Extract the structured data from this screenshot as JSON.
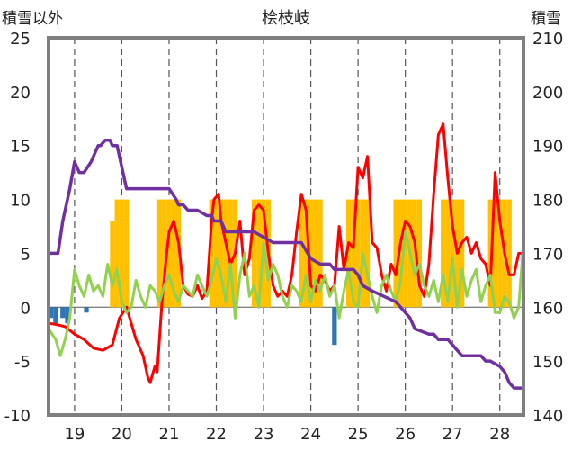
{
  "chart_data": {
    "type": "combo",
    "title": "桧枝岐",
    "left_axis_label": "積雪以外",
    "right_axis_label": "積雪",
    "ylim_left": [
      -10,
      25
    ],
    "ylim_right": [
      140,
      210
    ],
    "left_ticks": [
      25,
      20,
      15,
      10,
      5,
      0,
      -5,
      -10
    ],
    "right_ticks": [
      210,
      200,
      190,
      180,
      170,
      160,
      150,
      140
    ],
    "xlim": [
      18.45,
      28.5
    ],
    "x_ticks": [
      19,
      20,
      21,
      22,
      23,
      24,
      25,
      26,
      27,
      28
    ],
    "grid": "vertical-dashed",
    "colors": {
      "temperature": "#ff0000",
      "green_series": "#92d050",
      "snow_depth": "#7030a0",
      "precip_bars": "#ffc000",
      "neg_bars": "#2e75b6"
    },
    "series": [
      {
        "type": "line",
        "axis": "left",
        "color": "#ff0000",
        "x": [
          18.45,
          18.6,
          18.8,
          19.0,
          19.2,
          19.4,
          19.6,
          19.8,
          19.95,
          20.1,
          20.3,
          20.45,
          20.55,
          20.6,
          20.7,
          20.75,
          20.85,
          20.95,
          21.0,
          21.1,
          21.2,
          21.3,
          21.4,
          21.5,
          21.6,
          21.7,
          21.8,
          21.9,
          21.95,
          22.05,
          22.1,
          22.2,
          22.3,
          22.4,
          22.5,
          22.6,
          22.7,
          22.8,
          22.9,
          23.0,
          23.1,
          23.2,
          23.3,
          23.4,
          23.5,
          23.6,
          23.7,
          23.8,
          23.9,
          24.0,
          24.1,
          24.2,
          24.3,
          24.4,
          24.5,
          24.6,
          24.7,
          24.8,
          24.9,
          25.0,
          25.1,
          25.2,
          25.3,
          25.4,
          25.5,
          25.6,
          25.7,
          25.8,
          25.9,
          26.0,
          26.1,
          26.2,
          26.3,
          26.4,
          26.5,
          26.6,
          26.7,
          26.8,
          26.9,
          27.0,
          27.1,
          27.2,
          27.3,
          27.4,
          27.5,
          27.6,
          27.7,
          27.8,
          27.9,
          28.0,
          28.1,
          28.2,
          28.3,
          28.4,
          28.5
        ],
        "y": [
          -1.5,
          -1.6,
          -1.8,
          -2.5,
          -3.0,
          -3.8,
          -4.0,
          -3.5,
          -1.0,
          0.0,
          -3.0,
          -4.5,
          -6.5,
          -7.0,
          -5.5,
          -6.0,
          0.5,
          5.0,
          7.0,
          8.0,
          6.0,
          2.0,
          1.2,
          1.0,
          2.0,
          0.8,
          1.5,
          8.0,
          10.0,
          10.5,
          8.0,
          6.0,
          4.0,
          5.0,
          8.0,
          3.0,
          4.5,
          9.0,
          9.5,
          9.0,
          5.0,
          2.0,
          1.0,
          1.5,
          1.0,
          3.0,
          7.0,
          10.5,
          9.0,
          2.0,
          1.5,
          3.0,
          2.5,
          1.5,
          2.0,
          7.5,
          3.5,
          6.0,
          5.5,
          13.0,
          12.0,
          14.0,
          6.0,
          5.5,
          3.0,
          1.5,
          4.0,
          3.0,
          6.0,
          8.0,
          7.5,
          6.0,
          2.0,
          1.0,
          4.0,
          10.5,
          16.0,
          17.0,
          12.0,
          7.5,
          5.0,
          6.0,
          6.5,
          5.0,
          6.0,
          4.5,
          4.0,
          2.0,
          12.5,
          8.0,
          5.0,
          3.0,
          3.0,
          5.0,
          5.0
        ]
      },
      {
        "type": "line",
        "axis": "left",
        "color": "#92d050",
        "x": [
          18.45,
          18.6,
          18.7,
          18.8,
          18.9,
          19.0,
          19.1,
          19.2,
          19.3,
          19.4,
          19.5,
          19.6,
          19.7,
          19.8,
          19.9,
          20.0,
          20.1,
          20.2,
          20.3,
          20.4,
          20.5,
          20.6,
          20.7,
          20.8,
          20.9,
          21.0,
          21.1,
          21.2,
          21.3,
          21.4,
          21.5,
          21.6,
          21.7,
          21.8,
          21.9,
          22.0,
          22.1,
          22.2,
          22.3,
          22.4,
          22.5,
          22.6,
          22.7,
          22.8,
          22.9,
          23.0,
          23.1,
          23.2,
          23.3,
          23.4,
          23.5,
          23.6,
          23.7,
          23.8,
          23.9,
          24.0,
          24.1,
          24.2,
          24.3,
          24.4,
          24.5,
          24.6,
          24.7,
          24.8,
          24.9,
          25.0,
          25.1,
          25.2,
          25.3,
          25.4,
          25.5,
          25.6,
          25.7,
          25.8,
          25.9,
          26.0,
          26.1,
          26.2,
          26.3,
          26.4,
          26.5,
          26.6,
          26.7,
          26.8,
          26.9,
          27.0,
          27.1,
          27.2,
          27.3,
          27.4,
          27.5,
          27.6,
          27.7,
          27.8,
          27.9,
          28.0,
          28.1,
          28.2,
          28.3,
          28.4,
          28.5
        ],
        "y": [
          -2.0,
          -3.0,
          -4.5,
          -3.0,
          -1.0,
          3.5,
          2.0,
          1.0,
          3.0,
          1.5,
          2.0,
          1.0,
          4.0,
          2.0,
          3.5,
          0.5,
          -0.5,
          0.0,
          2.5,
          1.0,
          0.0,
          2.0,
          1.5,
          0.5,
          2.0,
          3.0,
          1.5,
          0.5,
          2.0,
          1.5,
          1.0,
          3.0,
          2.0,
          1.0,
          2.5,
          4.5,
          3.0,
          0.5,
          4.0,
          -1.0,
          3.0,
          5.0,
          1.0,
          2.0,
          0.0,
          6.0,
          2.5,
          4.0,
          3.0,
          1.0,
          0.0,
          2.0,
          1.5,
          0.5,
          3.0,
          0.5,
          2.5,
          1.5,
          3.0,
          1.0,
          2.0,
          -1.0,
          1.5,
          3.5,
          0.5,
          0.0,
          5.0,
          3.0,
          1.0,
          -0.5,
          2.0,
          3.0,
          1.5,
          0.5,
          2.5,
          7.0,
          5.0,
          3.0,
          4.0,
          2.0,
          1.0,
          2.5,
          0.5,
          3.0,
          0.5,
          4.5,
          0.0,
          3.5,
          1.0,
          2.5,
          3.5,
          0.5,
          2.0,
          3.0,
          -0.5,
          -0.5,
          1.0,
          0.5,
          -1.0,
          0.0,
          6.0
        ]
      },
      {
        "type": "line",
        "axis": "right",
        "color": "#7030a0",
        "x": [
          18.45,
          18.65,
          18.75,
          18.9,
          19.0,
          19.1,
          19.2,
          19.35,
          19.5,
          19.55,
          19.65,
          19.75,
          19.8,
          19.9,
          20.0,
          20.1,
          20.2,
          20.35,
          20.5,
          21.0,
          21.15,
          21.2,
          21.3,
          21.4,
          21.5,
          21.6,
          21.8,
          21.9,
          21.95,
          22.1,
          22.2,
          22.3,
          22.6,
          22.8,
          23.0,
          23.2,
          23.6,
          23.8,
          24.0,
          24.2,
          24.4,
          24.5,
          24.9,
          25.0,
          25.1,
          25.3,
          25.8,
          26.0,
          26.1,
          26.2,
          26.5,
          26.6,
          26.7,
          26.8,
          26.9,
          27.0,
          27.1,
          27.2,
          27.6,
          27.7,
          27.8,
          28.0,
          28.1,
          28.2,
          28.3,
          28.5
        ],
        "y": [
          170,
          170,
          176,
          182,
          187,
          185,
          185,
          187,
          190,
          190,
          191,
          191,
          190,
          190,
          186,
          182,
          182,
          182,
          182,
          182,
          180,
          179,
          179,
          178,
          178,
          178,
          177,
          177,
          176,
          176,
          174,
          174,
          174,
          174,
          173,
          172,
          172,
          172,
          169,
          168,
          168,
          167,
          167,
          166,
          164,
          163,
          161,
          159,
          158,
          156,
          155,
          155,
          154,
          154,
          154,
          153,
          152,
          151,
          151,
          150,
          150,
          149,
          148,
          146,
          145,
          145
        ]
      },
      {
        "type": "bar",
        "axis": "left",
        "color": "#ffc000",
        "x": [
          19.8,
          19.9,
          20.0,
          20.1,
          20.8,
          20.9,
          21.0,
          21.1,
          21.2,
          21.9,
          22.0,
          22.1,
          22.2,
          22.3,
          22.4,
          22.8,
          22.9,
          23.0,
          23.1,
          23.8,
          23.9,
          24.0,
          24.1,
          24.2,
          24.8,
          24.9,
          25.0,
          25.1,
          25.2,
          25.8,
          25.9,
          26.0,
          26.1,
          26.2,
          26.3,
          26.8,
          26.9,
          27.0,
          27.1,
          27.2,
          27.8,
          27.9,
          28.0,
          28.1,
          28.2
        ],
        "y": [
          8.0,
          10.0,
          10.0,
          10.0,
          10.0,
          10.0,
          10.0,
          10.0,
          10.0,
          10.0,
          10.0,
          10.0,
          10.0,
          10.0,
          10.0,
          10.0,
          10.0,
          10.0,
          10.0,
          10.0,
          10.0,
          10.0,
          10.0,
          10.0,
          10.0,
          10.0,
          10.0,
          10.0,
          10.0,
          10.0,
          10.0,
          10.0,
          10.0,
          10.0,
          10.0,
          10.0,
          10.0,
          10.0,
          10.0,
          10.0,
          10.0,
          10.0,
          10.0,
          10.0,
          10.0
        ]
      },
      {
        "type": "bar",
        "axis": "left",
        "color": "#2e75b6",
        "x": [
          18.5,
          18.6,
          18.75,
          18.85,
          19.25,
          24.5
        ],
        "y": [
          -1.0,
          -1.5,
          -1.0,
          -1.5,
          -0.5,
          -3.5
        ]
      }
    ]
  }
}
